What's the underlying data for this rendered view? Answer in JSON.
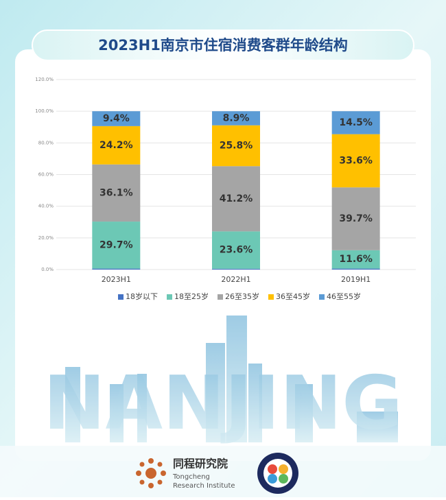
{
  "chart_data": {
    "type": "stacked-bar",
    "title": "2023H1南京市住宿消费客群年龄结构",
    "categories": [
      "2023H1",
      "2022H1",
      "2019H1"
    ],
    "series": [
      {
        "name": "18岁以下",
        "color": "#4472c4",
        "values": [
          0.6,
          0.5,
          0.6
        ]
      },
      {
        "name": "18至25岁",
        "color": "#6cc8b5",
        "values": [
          29.7,
          23.6,
          11.6
        ],
        "value_labels": [
          "29.7%",
          "23.6%",
          "11.6%"
        ]
      },
      {
        "name": "26至35岁",
        "color": "#a5a5a5",
        "values": [
          36.1,
          41.2,
          39.7
        ],
        "value_labels": [
          "36.1%",
          "41.2%",
          "39.7%"
        ]
      },
      {
        "name": "36至45岁",
        "color": "#ffc000",
        "values": [
          24.2,
          25.8,
          33.6
        ],
        "value_labels": [
          "24.2%",
          "25.8%",
          "33.6%"
        ]
      },
      {
        "name": "46至55岁",
        "color": "#5b9bd5",
        "values": [
          9.4,
          8.9,
          14.5
        ],
        "value_labels": [
          "9.4%",
          "8.9%",
          "14.5%"
        ]
      }
    ],
    "ylim": [
      0,
      120
    ],
    "yticks": [
      {
        "value": 0,
        "label": "0.0%"
      },
      {
        "value": 20,
        "label": "20.0%"
      },
      {
        "value": 40,
        "label": "40.0%"
      },
      {
        "value": 60,
        "label": "60.0%"
      },
      {
        "value": 80,
        "label": "80.0%"
      },
      {
        "value": 100,
        "label": "100.0%"
      },
      {
        "value": 120,
        "label": "120.0%"
      }
    ],
    "grid": true,
    "legend": "bottom"
  },
  "decoration": {
    "city": "NANJING"
  },
  "footer": {
    "org_name": "同程研究院",
    "org_en_1": "Tongcheng",
    "org_en_2": "Research Institute"
  }
}
